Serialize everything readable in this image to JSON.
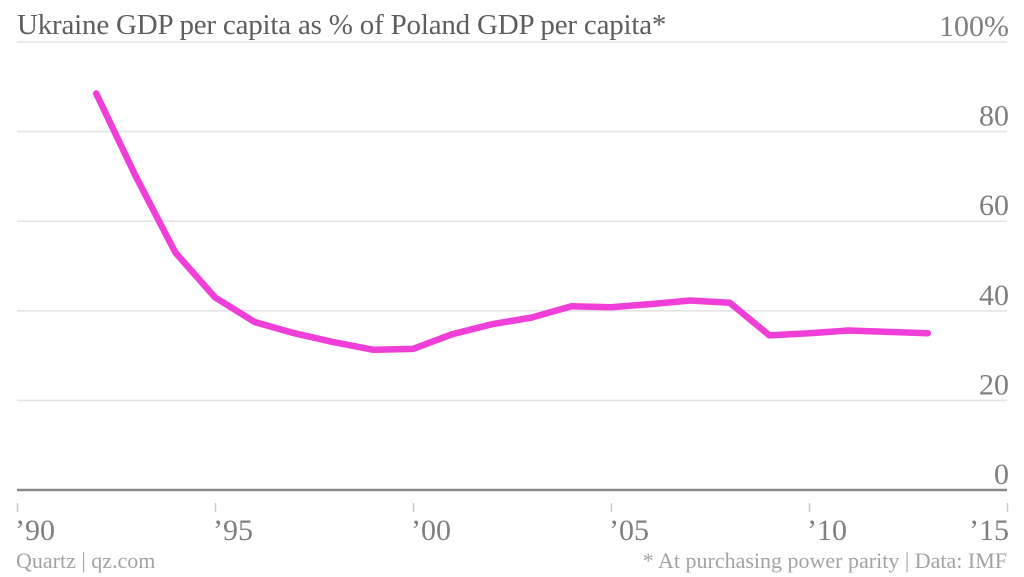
{
  "header": {
    "title": "Ukraine GDP per capita as % of Poland GDP per capita*"
  },
  "footer": {
    "left": "Quartz | qz.com",
    "right": "* At purchasing power parity | Data: IMF"
  },
  "colors": {
    "background": "#ffffff",
    "line": "#f03ed8",
    "title": "#5e5e5e",
    "axis_label": "#7f7f7f",
    "gridline": "#e4e4e4",
    "zero_line": "#8a8a8a",
    "tick": "#cccccc",
    "footer": "#a3a3a3"
  },
  "chart_data": {
    "type": "line",
    "title": "Ukraine GDP per capita as % of Poland GDP per capita*",
    "series_name": "Ukraine GDP per capita as % of Poland GDP per capita",
    "unit": "%",
    "x": [
      1992,
      1993,
      1994,
      1995,
      1996,
      1997,
      1998,
      1999,
      2000,
      2001,
      2002,
      2003,
      2004,
      2005,
      2006,
      2007,
      2008,
      2009,
      2010,
      2011,
      2012,
      2013
    ],
    "values": [
      88.5,
      70,
      53,
      43,
      37.5,
      35,
      33,
      31.3,
      31.5,
      34.8,
      37,
      38.5,
      41,
      40.8,
      41.5,
      42.3,
      41.8,
      34.5,
      35,
      35.6,
      35.3,
      35
    ],
    "xlabel": "",
    "ylabel": "",
    "xlim": [
      1990,
      2015
    ],
    "ylim": [
      0,
      100
    ],
    "x_ticks": [
      1990,
      1995,
      2000,
      2005,
      2010,
      2015
    ],
    "x_tick_labels": [
      "’90",
      "’95",
      "’00",
      "’05",
      "’10",
      "’15"
    ],
    "y_ticks": [
      0,
      20,
      40,
      60,
      80,
      100
    ],
    "y_tick_labels": [
      "0",
      "20",
      "40",
      "60",
      "80",
      "100%"
    ],
    "grid": "horizontal",
    "legend": "none",
    "note": "* At purchasing power parity",
    "data_source": "Data: IMF"
  }
}
